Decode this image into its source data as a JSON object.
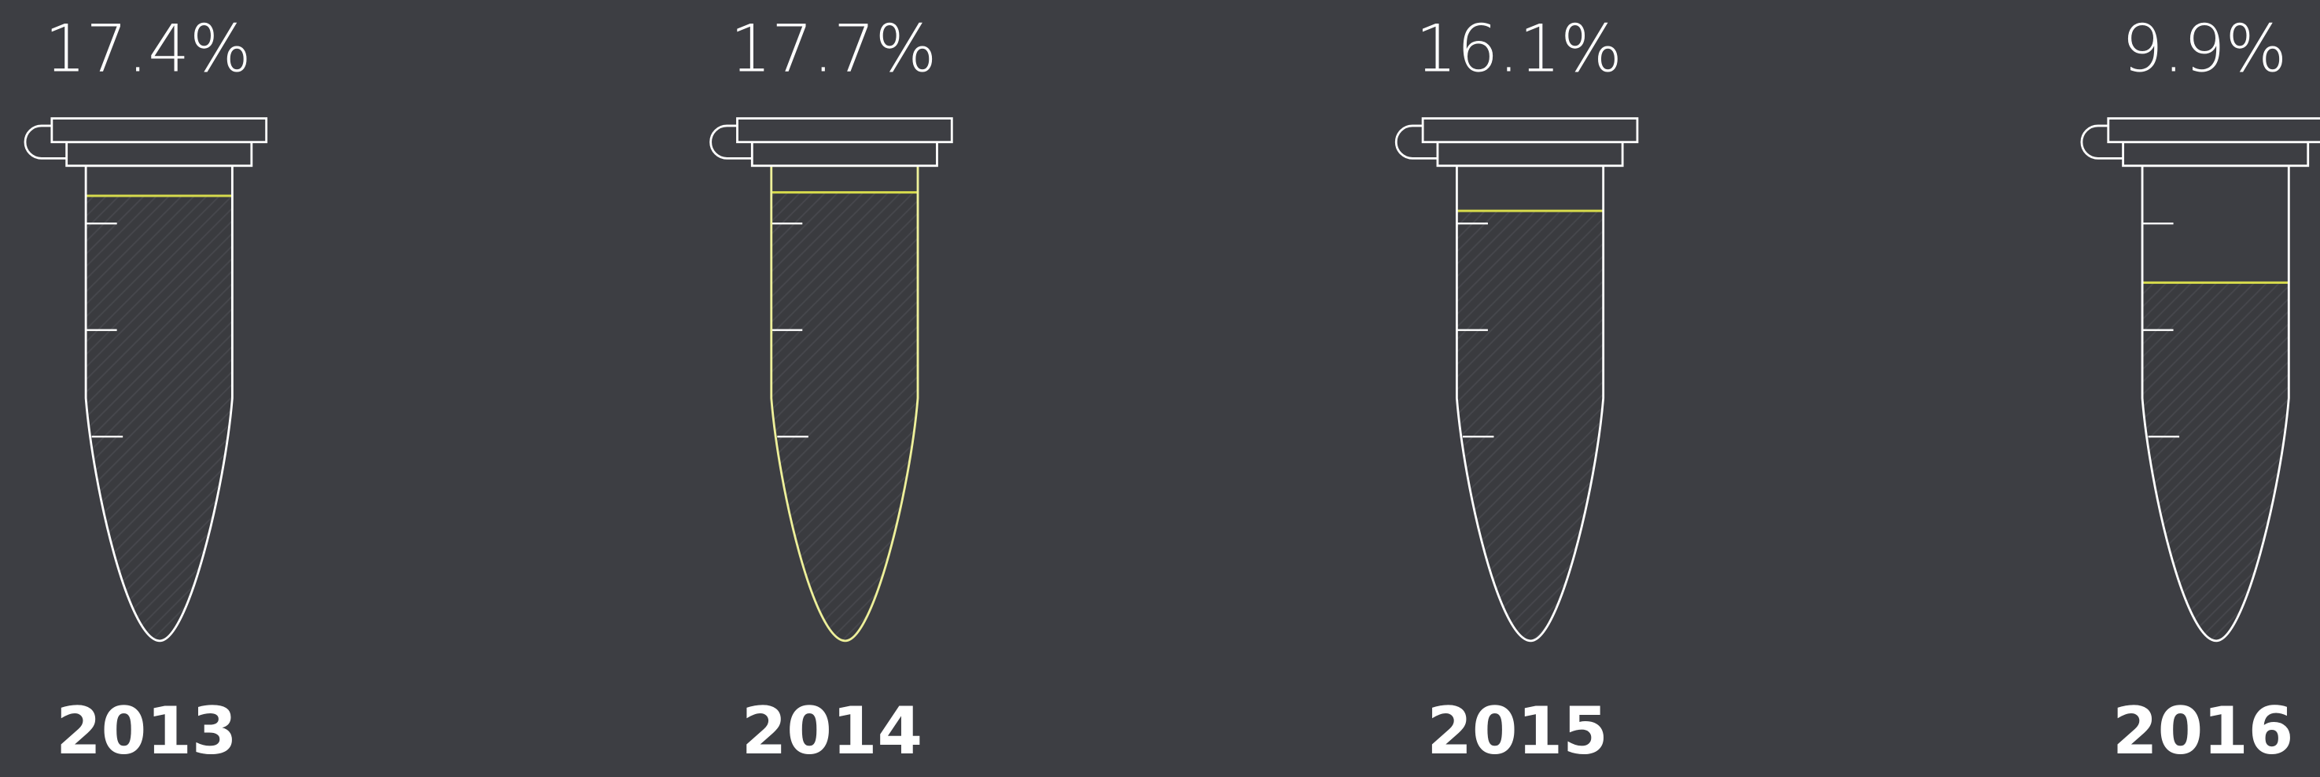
{
  "chart_data": {
    "type": "tube",
    "categories": [
      "2013",
      "2014",
      "2015",
      "2016"
    ],
    "values": [
      17.4,
      17.7,
      16.1,
      9.9
    ],
    "value_labels": [
      "17.4%",
      "17.7%",
      "16.1%",
      "9.9%"
    ],
    "ylim": [
      0,
      20
    ],
    "color": "#d6da4c",
    "outline_color": "#ffffff",
    "highlight": 1,
    "highlight_color": "#eef09a"
  }
}
